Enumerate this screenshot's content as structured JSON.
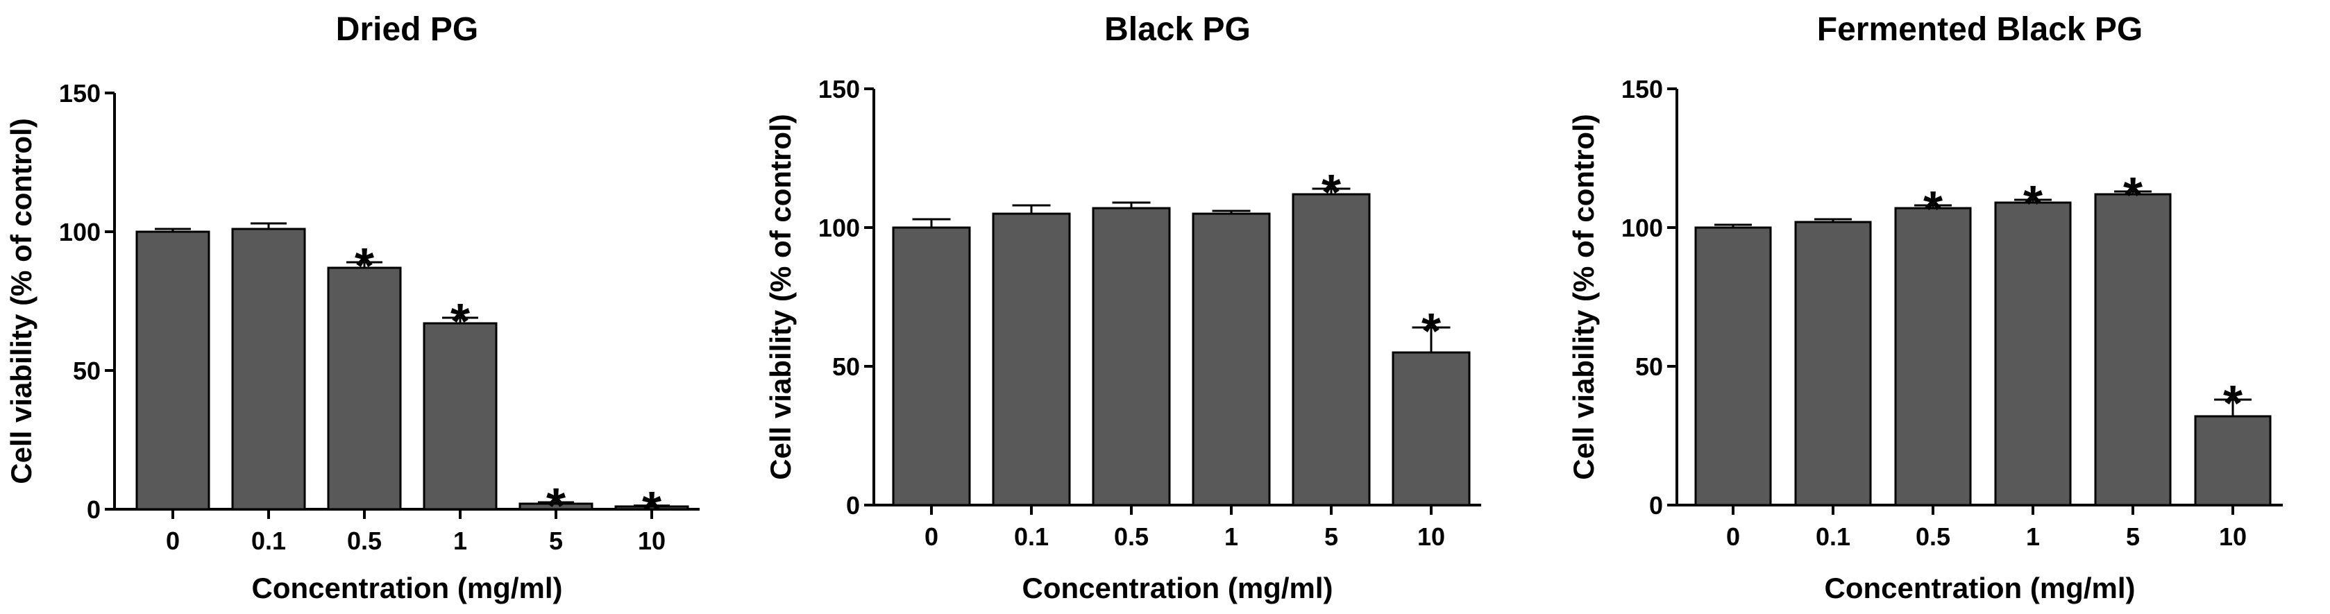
{
  "chart_data": [
    {
      "type": "bar",
      "title": "Dried PG",
      "xlabel": "Concentration (mg/ml)",
      "ylabel": "Cell viability (% of control)",
      "ylim": [
        0,
        150
      ],
      "yticks": [
        0,
        50,
        100,
        150
      ],
      "categories": [
        "0",
        "0.1",
        "0.5",
        "1",
        "5",
        "10"
      ],
      "values": [
        100,
        101,
        87,
        67,
        2,
        1
      ],
      "errors": [
        1,
        2,
        2,
        2,
        0.5,
        0.3
      ],
      "significance": [
        false,
        false,
        true,
        true,
        true,
        true
      ],
      "significance_marker": "*"
    },
    {
      "type": "bar",
      "title": "Black PG",
      "xlabel": "Concentration (mg/ml)",
      "ylabel": "Cell viability (% of control)",
      "ylim": [
        0,
        150
      ],
      "yticks": [
        0,
        50,
        100,
        150
      ],
      "categories": [
        "0",
        "0.1",
        "0.5",
        "1",
        "5",
        "10"
      ],
      "values": [
        100,
        105,
        107,
        105,
        112,
        55
      ],
      "errors": [
        3,
        3,
        2,
        1,
        2,
        9
      ],
      "significance": [
        false,
        false,
        false,
        false,
        true,
        true
      ],
      "significance_marker": "*"
    },
    {
      "type": "bar",
      "title": "Fermented Black PG",
      "xlabel": "Concentration (mg/ml)",
      "ylabel": "Cell viability (% of control)",
      "ylim": [
        0,
        150
      ],
      "yticks": [
        0,
        50,
        100,
        150
      ],
      "categories": [
        "0",
        "0.1",
        "0.5",
        "1",
        "5",
        "10"
      ],
      "values": [
        100,
        102,
        107,
        109,
        112,
        32
      ],
      "errors": [
        1,
        1,
        1,
        1,
        1,
        6
      ],
      "significance": [
        false,
        false,
        true,
        true,
        true,
        true
      ],
      "significance_marker": "*"
    }
  ],
  "style": {
    "bar_color": "#595959",
    "axis_color": "#000000"
  }
}
